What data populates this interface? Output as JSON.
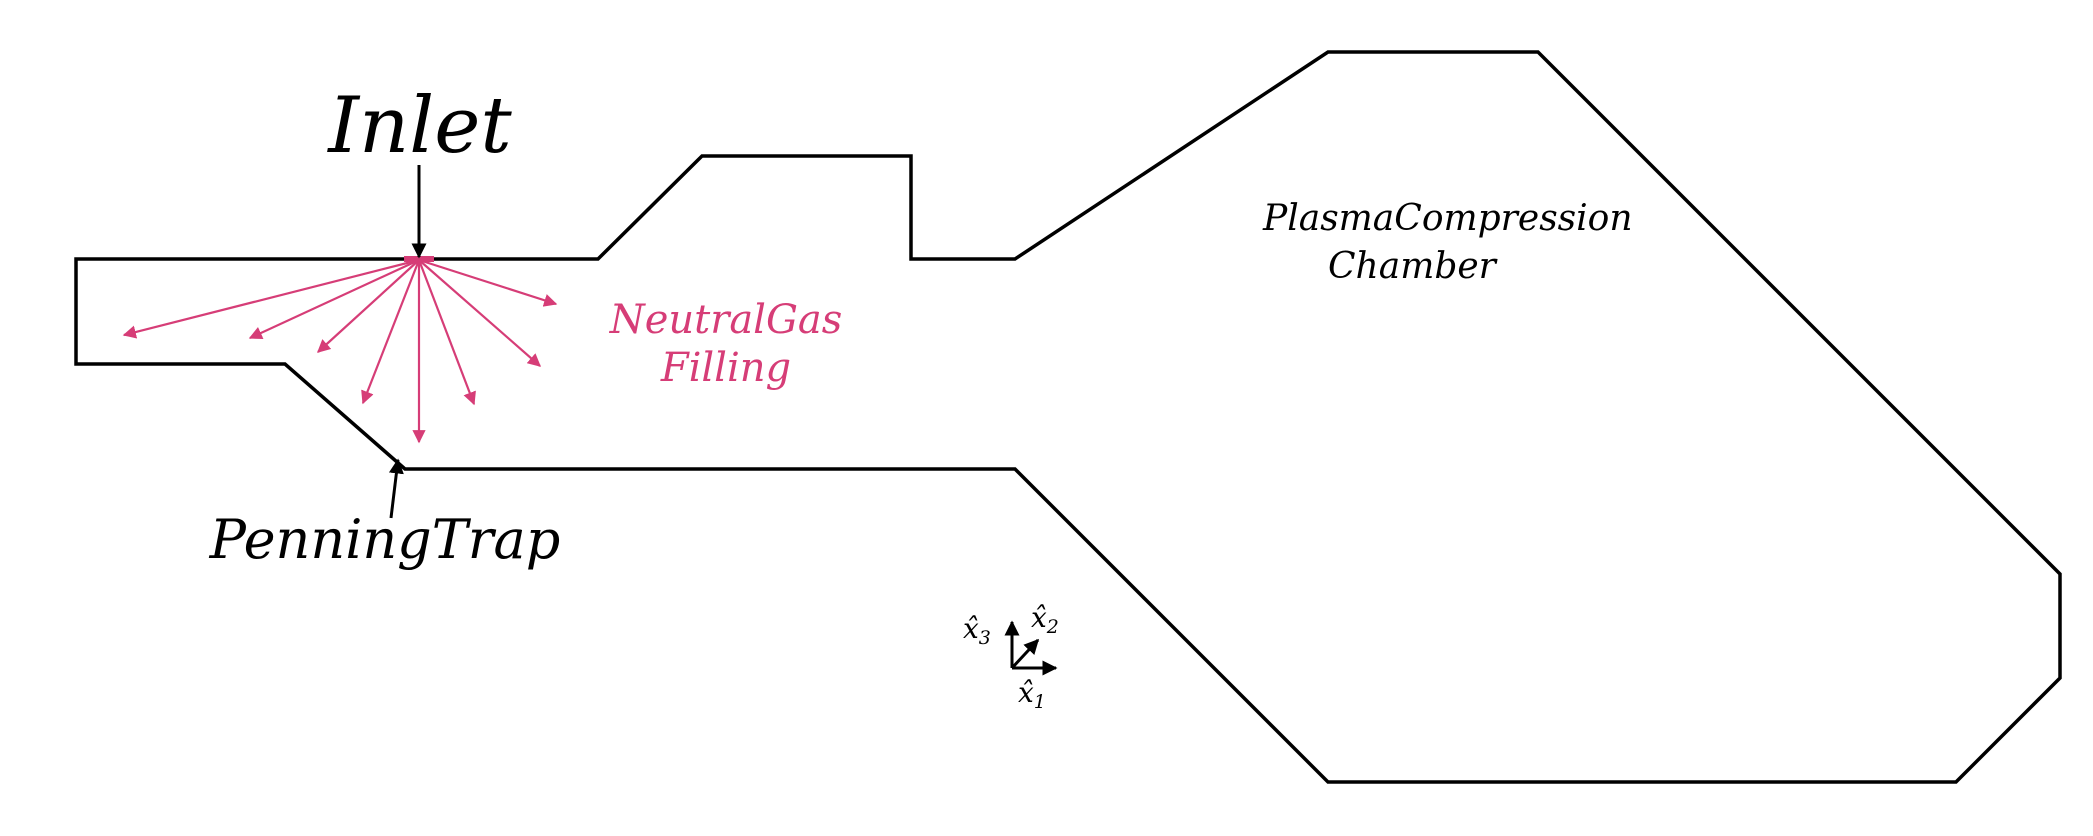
{
  "labels": {
    "inlet": "Inlet",
    "neutral_gas_line1": "NeutralGas",
    "neutral_gas_line2": "Filling",
    "penning_trap": "PenningTrap",
    "plasma_line1": "PlasmaCompression",
    "plasma_line2": "Chamber"
  },
  "axes": {
    "x1": "x̂",
    "x1_sub": "1",
    "x2": "x̂",
    "x2_sub": "2",
    "x3": "x̂",
    "x3_sub": "3"
  },
  "colors": {
    "outline": "#000000",
    "gas": "#d63d77"
  }
}
